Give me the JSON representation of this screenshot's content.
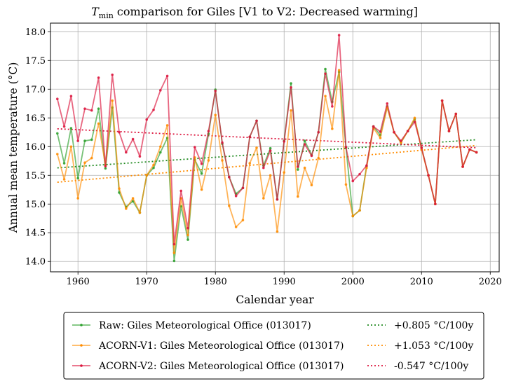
{
  "chart_data": {
    "type": "line",
    "title_main": "T",
    "title_sub": "min",
    "title_rest": " comparison for Giles   [V1 to V2: Decreased warming]",
    "xlabel": "Calendar year",
    "ylabel": "Annual mean temperature (°C)",
    "xlim": [
      1956,
      2021.3
    ],
    "ylim": [
      13.82,
      18.15
    ],
    "xticks": [
      1960,
      1970,
      1980,
      1990,
      2000,
      2010,
      2020
    ],
    "yticks": [
      14.0,
      14.5,
      15.0,
      15.5,
      16.0,
      16.5,
      17.0,
      17.5,
      18.0
    ],
    "ytick_labels": [
      "14.0",
      "14.5",
      "15.0",
      "15.5",
      "16.0",
      "16.5",
      "17.0",
      "17.5",
      "18.0"
    ],
    "grid": true,
    "legend_position": "bottom-center-outside",
    "x": [
      1957,
      1958,
      1959,
      1960,
      1961,
      1962,
      1963,
      1964,
      1965,
      1966,
      1967,
      1968,
      1969,
      1970,
      1971,
      1972,
      1973,
      1974,
      1975,
      1976,
      1977,
      1978,
      1979,
      1980,
      1981,
      1982,
      1983,
      1984,
      1985,
      1986,
      1987,
      1988,
      1989,
      1990,
      1991,
      1992,
      1993,
      1994,
      1995,
      1996,
      1997,
      1998,
      1999,
      2000,
      2001,
      2002,
      2003,
      2004,
      2005,
      2006,
      2007,
      2008,
      2009,
      2010,
      2011,
      2012,
      2013,
      2014,
      2015,
      2016,
      2017,
      2018
    ],
    "series": [
      {
        "name": "Raw: Giles Meteorological Office (013017)",
        "color": "#2ca02c",
        "values": [
          16.23,
          15.71,
          16.32,
          15.45,
          16.1,
          16.12,
          16.66,
          15.62,
          16.68,
          15.2,
          14.95,
          15.05,
          14.85,
          15.5,
          15.63,
          15.9,
          16.15,
          14.01,
          14.96,
          14.38,
          15.77,
          15.53,
          16.22,
          16.99,
          16.05,
          15.47,
          15.18,
          15.28,
          16.17,
          16.45,
          15.67,
          15.97,
          15.08,
          16.1,
          17.1,
          15.6,
          16.1,
          15.85,
          16.25,
          17.35,
          16.78,
          17.3,
          15.99,
          14.79,
          14.89,
          15.66,
          16.35,
          16.2,
          16.7,
          16.25,
          16.07,
          16.27,
          16.48,
          15.98,
          15.5,
          15.0,
          16.8,
          16.27,
          16.57,
          15.65,
          15.95,
          15.9
        ]
      },
      {
        "name": "ACORN-V1: Giles Meteorological Office (013017)",
        "color": "#ff8c00",
        "values": [
          15.87,
          15.43,
          16.0,
          15.1,
          15.72,
          15.8,
          16.4,
          15.67,
          16.8,
          15.27,
          14.92,
          15.1,
          14.85,
          15.5,
          15.68,
          16.0,
          16.37,
          14.15,
          15.1,
          14.46,
          15.81,
          15.25,
          15.76,
          16.55,
          15.76,
          14.97,
          14.6,
          14.72,
          15.71,
          15.98,
          15.1,
          15.5,
          14.52,
          15.55,
          16.63,
          15.13,
          15.63,
          15.33,
          15.8,
          16.88,
          16.31,
          17.33,
          15.34,
          14.79,
          14.89,
          15.63,
          16.32,
          16.15,
          16.68,
          16.25,
          16.07,
          16.27,
          16.5,
          15.95,
          15.5,
          15.0,
          16.8,
          16.27,
          16.57,
          15.65,
          15.95,
          15.9
        ]
      },
      {
        "name": "ACORN-V2: Giles Meteorological Office (013017)",
        "color": "#dc143c",
        "values": [
          16.83,
          16.35,
          16.88,
          16.1,
          16.66,
          16.63,
          17.2,
          15.66,
          17.25,
          16.25,
          15.9,
          16.13,
          15.83,
          16.47,
          16.64,
          16.98,
          17.23,
          14.3,
          15.23,
          14.58,
          15.99,
          15.7,
          16.27,
          16.97,
          16.07,
          15.47,
          15.14,
          15.28,
          16.17,
          16.45,
          15.63,
          15.93,
          15.08,
          16.09,
          17.03,
          15.65,
          16.04,
          15.84,
          16.25,
          17.27,
          16.7,
          17.94,
          15.99,
          15.4,
          15.52,
          15.67,
          16.35,
          16.26,
          16.75,
          16.25,
          16.1,
          16.27,
          16.43,
          15.98,
          15.5,
          15.0,
          16.8,
          16.27,
          16.57,
          15.65,
          15.95,
          15.9
        ]
      }
    ],
    "trends": [
      {
        "label": "+0.805 °C/100y",
        "color": "#228b22",
        "x": [
          1957,
          2018
        ],
        "y": [
          15.63,
          16.12
        ]
      },
      {
        "label": "+1.053 °C/100y",
        "color": "#ff8c00",
        "x": [
          1957,
          2018
        ],
        "y": [
          15.38,
          16.02
        ]
      },
      {
        "label": "-0.547 °C/100y",
        "color": "#dc143c",
        "x": [
          1957,
          2018
        ],
        "y": [
          16.31,
          15.98
        ]
      }
    ]
  }
}
